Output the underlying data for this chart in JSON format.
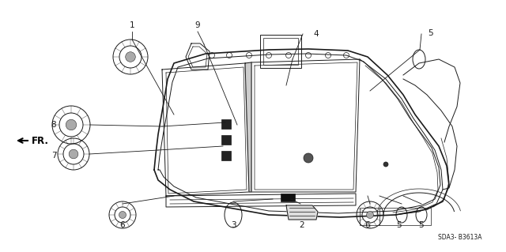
{
  "bg_color": "#ffffff",
  "line_color": "#1a1a1a",
  "part_code": "SDA3– B3613A",
  "fig_width": 6.4,
  "fig_height": 3.19,
  "dpi": 100
}
